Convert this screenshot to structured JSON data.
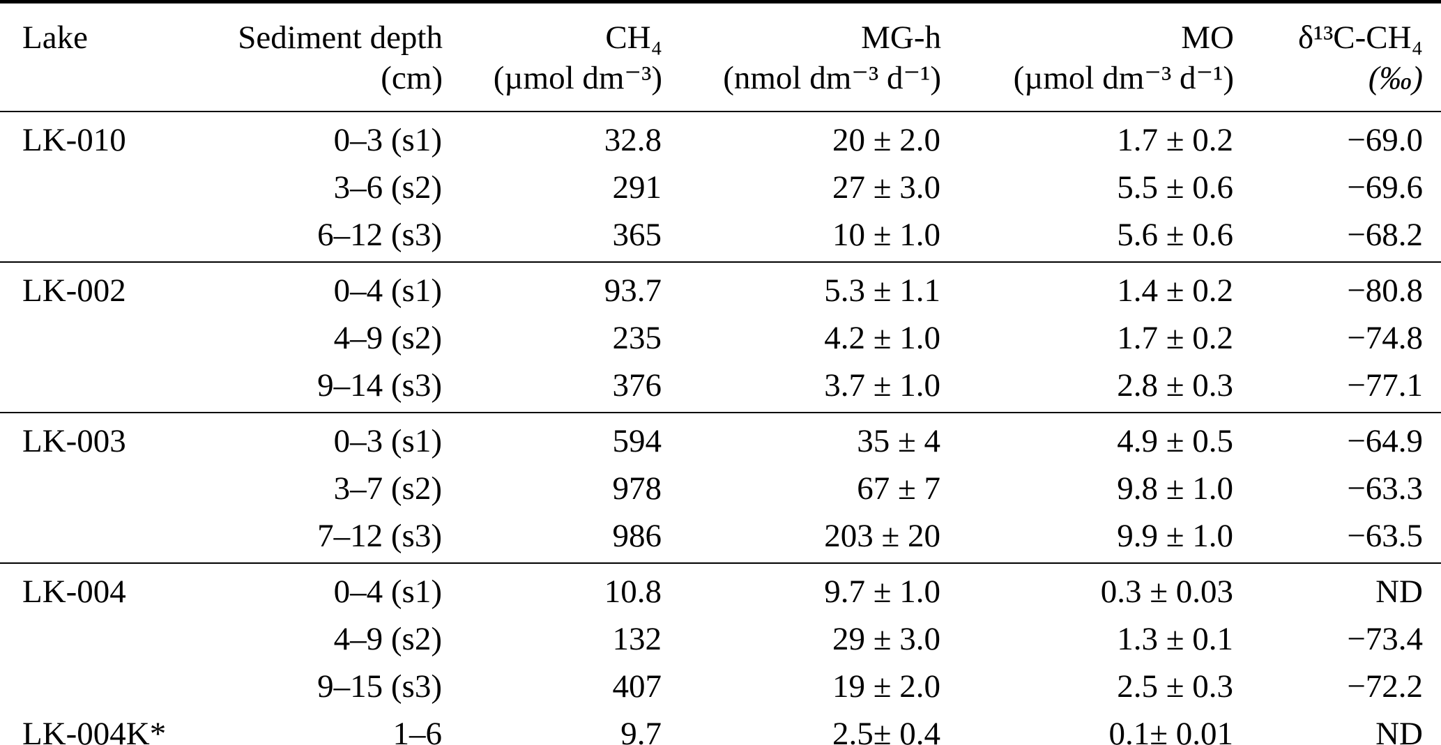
{
  "colors": {
    "ink": "#000000",
    "background": "#ffffff",
    "rule": "#000000"
  },
  "table": {
    "columns": [
      {
        "key": "lake",
        "label": "Lake",
        "unit": ""
      },
      {
        "key": "sediment-depth",
        "label": "Sediment depth",
        "unit": "(cm)"
      },
      {
        "key": "ch4",
        "label": "CH₄",
        "unit": "(µmol dm⁻³)"
      },
      {
        "key": "mg-h",
        "label": "MG-h",
        "unit": "(nmol dm⁻³ d⁻¹)"
      },
      {
        "key": "mo",
        "label": "MO",
        "unit": "(µmol dm⁻³ d⁻¹)"
      },
      {
        "key": "d13c-ch4",
        "label": "δ¹³C-CH₄",
        "unit": "(‰)"
      }
    ],
    "groups": [
      {
        "rows": [
          [
            "LK-010",
            "0–3 (s1)",
            "32.8",
            "20 ± 2.0",
            "1.7 ± 0.2",
            "−69.0"
          ],
          [
            "",
            "3–6 (s2)",
            "291",
            "27 ± 3.0",
            "5.5 ± 0.6",
            "−69.6"
          ],
          [
            "",
            "6–12 (s3)",
            "365",
            "10 ± 1.0",
            "5.6 ± 0.6",
            "−68.2"
          ]
        ]
      },
      {
        "rows": [
          [
            "LK-002",
            "0–4 (s1)",
            "93.7",
            "5.3 ± 1.1",
            "1.4 ± 0.2",
            "−80.8"
          ],
          [
            "",
            "4–9 (s2)",
            "235",
            "4.2 ± 1.0",
            "1.7 ± 0.2",
            "−74.8"
          ],
          [
            "",
            "9–14 (s3)",
            "376",
            "3.7 ± 1.0",
            "2.8 ± 0.3",
            "−77.1"
          ]
        ]
      },
      {
        "rows": [
          [
            "LK-003",
            "0–3 (s1)",
            "594",
            "35 ± 4",
            "4.9 ± 0.5",
            "−64.9"
          ],
          [
            "",
            "3–7 (s2)",
            "978",
            "67 ± 7",
            "9.8 ± 1.0",
            "−63.3"
          ],
          [
            "",
            "7–12 (s3)",
            "986",
            "203 ± 20",
            "9.9 ± 1.0",
            "−63.5"
          ]
        ]
      },
      {
        "rows": [
          [
            "LK-004",
            "0–4 (s1)",
            "10.8",
            "9.7 ± 1.0",
            "0.3 ± 0.03",
            "ND"
          ],
          [
            "",
            "4–9 (s2)",
            "132",
            "29 ± 3.0",
            "1.3 ± 0.1",
            "−73.4"
          ],
          [
            "",
            "9–15 (s3)",
            "407",
            "19 ± 2.0",
            "2.5 ± 0.3",
            "−72.2"
          ],
          [
            "LK-004K*",
            "1–6",
            "9.7",
            "2.5± 0.4",
            "0.1± 0.01",
            "ND"
          ]
        ]
      }
    ]
  }
}
